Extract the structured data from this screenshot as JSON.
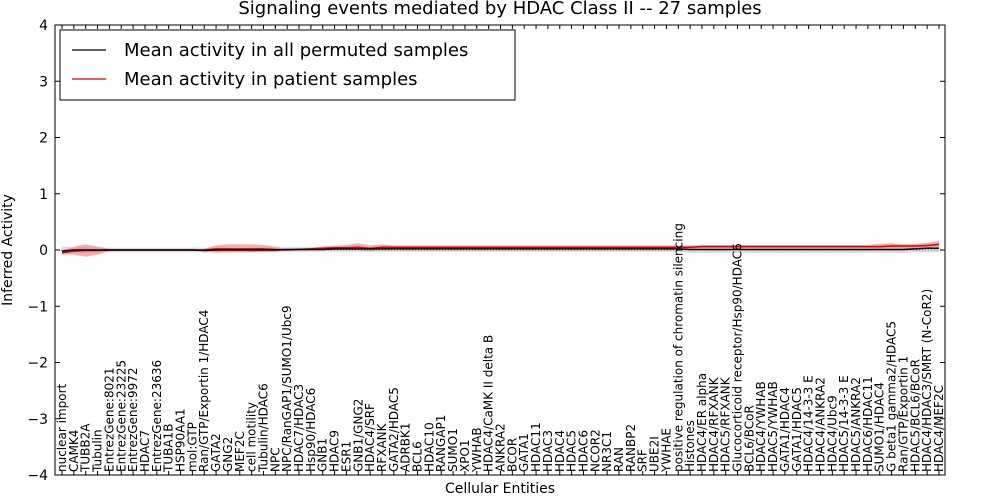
{
  "chart_data": {
    "type": "line",
    "title": "Signaling events mediated by HDAC Class II -- 27 samples",
    "xlabel": "Cellular Entities",
    "ylabel": "Inferred Activity",
    "ylim": [
      -4,
      4
    ],
    "yticks": [
      -4,
      -3,
      -2,
      -1,
      0,
      1,
      2,
      3,
      4
    ],
    "ytick_labels": [
      "−4",
      "−3",
      "−2",
      "−1",
      "0",
      "1",
      "2",
      "3",
      "4"
    ],
    "legend_position": "upper-left",
    "categories": [
      "nuclear import",
      "CAMK4",
      "TUBB2A",
      "Tubulin",
      "EntrezGene:8021",
      "EntrezGene:23225",
      "EntrezGene:9972",
      "HDAC7",
      "EntrezGene:23636",
      "TUBA1B",
      "HSP90AA1",
      "mol:GTP",
      "Ran/GTP/Exportin 1/HDAC4",
      "GATA2",
      "GNG2",
      "MEF2C",
      "cell motility",
      "Tubulin/HDAC6",
      "NPC",
      "NPC/RanGAP1/SUMO1/Ubc9",
      "HDAC7/HDAC3",
      "Hsp90/HDAC6",
      "GNB1",
      "HDAC9",
      "ESR1",
      "GNB1/GNG2",
      "HDAC4/SRF",
      "RFXANK",
      "GATA2/HDAC5",
      "ADRBK1",
      "BCL6",
      "HDAC10",
      "RANGAP1",
      "SUMO1",
      "XPO1",
      "YWHAB",
      "HDAC4/CaMK II delta B",
      "ANKRA2",
      "BCOR",
      "GATA1",
      "HDAC11",
      "HDAC3",
      "HDAC4",
      "HDAC5",
      "HDAC6",
      "NCOR2",
      "NR3C1",
      "RAN",
      "RANBP2",
      "SRF",
      "UBE2I",
      "YWHAE",
      "positive regulation of chromatin silencing",
      "Histones",
      "HDAC4/ER alpha",
      "HDAC4/RFXANK",
      "HDAC5/RFXANK",
      "Glucocorticoid receptor/Hsp90/HDAC6",
      "BCL6/BCoR",
      "HDAC4/YWHAB",
      "HDAC5/YWHAB",
      "GATA1/HDAC4",
      "GATA1/HDAC5",
      "HDAC4/14-3-3 E",
      "HDAC4/ANKRA2",
      "HDAC4/Ubc9",
      "HDAC5/14-3-3 E",
      "HDAC5/ANKRA2",
      "HDAC6/HDAC11",
      "SUMO1/HDAC4",
      "G beta1 gamma2/HDAC5",
      "Ran/GTP/Exportin 1",
      "HDAC5/BCL6/BCoR",
      "HDAC4/HDAC3/SMRT (N-CoR2)",
      "HDAC4/MEF2C"
    ],
    "series": [
      {
        "name": "Mean activity in all permuted samples",
        "color": "#000000",
        "band_color": "#b8bcc4",
        "values": [
          -0.02,
          0,
          0,
          0,
          0,
          0,
          0,
          0,
          0,
          0,
          0,
          0,
          -0.01,
          0,
          0,
          0,
          0,
          0,
          0,
          0.01,
          0.01,
          0.01,
          0.01,
          0.02,
          0.02,
          0.02,
          0.02,
          0.02,
          0.02,
          0.02,
          0.02,
          0.02,
          0.02,
          0.02,
          0.02,
          0.02,
          0.02,
          0.02,
          0.02,
          0.02,
          0.02,
          0.02,
          0.02,
          0.02,
          0.02,
          0.02,
          0.02,
          0.02,
          0.02,
          0.02,
          0.02,
          0.02,
          0.02,
          0.01,
          0.01,
          0.01,
          0.01,
          0.01,
          0.01,
          0.01,
          0.01,
          0.01,
          0.01,
          0.01,
          0.01,
          0.01,
          0.01,
          0.01,
          0.01,
          0.01,
          0.01,
          0.01,
          0.02,
          0.03,
          0.03
        ],
        "lower": [
          -0.08,
          -0.05,
          -0.05,
          -0.05,
          -0.04,
          -0.04,
          -0.04,
          -0.04,
          -0.04,
          -0.04,
          -0.04,
          -0.04,
          -0.05,
          -0.04,
          -0.04,
          -0.04,
          -0.04,
          -0.04,
          -0.04,
          -0.03,
          -0.03,
          -0.03,
          -0.03,
          -0.03,
          -0.03,
          -0.03,
          -0.03,
          -0.03,
          -0.03,
          -0.03,
          -0.03,
          -0.03,
          -0.03,
          -0.03,
          -0.03,
          -0.03,
          -0.03,
          -0.03,
          -0.03,
          -0.03,
          -0.03,
          -0.03,
          -0.03,
          -0.03,
          -0.03,
          -0.03,
          -0.03,
          -0.03,
          -0.03,
          -0.03,
          -0.03,
          -0.03,
          -0.03,
          -0.05,
          -0.05,
          -0.05,
          -0.05,
          -0.05,
          -0.05,
          -0.05,
          -0.05,
          -0.05,
          -0.05,
          -0.05,
          -0.05,
          -0.05,
          -0.05,
          -0.05,
          -0.05,
          -0.05,
          -0.05,
          -0.05,
          -0.04,
          -0.04,
          -0.04
        ],
        "upper": [
          0.06,
          0.05,
          0.05,
          0.05,
          0.04,
          0.04,
          0.04,
          0.04,
          0.04,
          0.04,
          0.04,
          0.04,
          0.04,
          0.04,
          0.04,
          0.04,
          0.04,
          0.04,
          0.04,
          0.05,
          0.05,
          0.05,
          0.05,
          0.06,
          0.06,
          0.06,
          0.06,
          0.06,
          0.06,
          0.06,
          0.06,
          0.06,
          0.06,
          0.06,
          0.06,
          0.06,
          0.06,
          0.06,
          0.06,
          0.06,
          0.06,
          0.06,
          0.06,
          0.06,
          0.06,
          0.06,
          0.06,
          0.06,
          0.06,
          0.06,
          0.06,
          0.06,
          0.06,
          0.06,
          0.06,
          0.06,
          0.06,
          0.06,
          0.06,
          0.06,
          0.06,
          0.06,
          0.06,
          0.06,
          0.06,
          0.06,
          0.06,
          0.06,
          0.06,
          0.06,
          0.06,
          0.06,
          0.07,
          0.08,
          0.08
        ]
      },
      {
        "name": "Mean activity in patient samples",
        "color": "#dd0000",
        "band_color": "#f08080",
        "values": [
          -0.05,
          -0.02,
          -0.01,
          -0.01,
          0,
          0,
          0,
          0,
          0,
          0,
          0,
          0,
          0,
          0.02,
          0.02,
          0.02,
          0.02,
          0.02,
          0.01,
          0,
          0.01,
          0.02,
          0.03,
          0.04,
          0.04,
          0.05,
          0.03,
          0.05,
          0.05,
          0.05,
          0.05,
          0.05,
          0.05,
          0.05,
          0.05,
          0.05,
          0.05,
          0.05,
          0.05,
          0.05,
          0.05,
          0.05,
          0.05,
          0.05,
          0.05,
          0.05,
          0.05,
          0.05,
          0.05,
          0.05,
          0.05,
          0.05,
          0.05,
          0.05,
          0.06,
          0.06,
          0.06,
          0.06,
          0.06,
          0.06,
          0.06,
          0.06,
          0.06,
          0.06,
          0.06,
          0.06,
          0.06,
          0.06,
          0.06,
          0.06,
          0.07,
          0.07,
          0.07,
          0.08,
          0.1
        ],
        "lower": [
          -0.08,
          -0.08,
          -0.12,
          -0.08,
          -0.02,
          -0.01,
          -0.01,
          -0.01,
          -0.01,
          -0.01,
          -0.01,
          -0.01,
          -0.02,
          -0.05,
          -0.04,
          -0.04,
          -0.04,
          -0.03,
          -0.03,
          -0.01,
          0,
          0.01,
          0.01,
          0,
          0,
          0,
          -0.02,
          0.01,
          0.02,
          0.02,
          0.02,
          0.02,
          0.02,
          0.02,
          0.02,
          0.02,
          0.02,
          0.02,
          0.02,
          0.02,
          0.02,
          0.02,
          0.02,
          0.02,
          0.02,
          0.02,
          0.02,
          0.02,
          0.02,
          0.02,
          0.02,
          0.02,
          0.02,
          0.02,
          0.03,
          0.03,
          0.03,
          0.03,
          0.03,
          0.03,
          0.03,
          0.03,
          0.03,
          0.03,
          0.03,
          0.03,
          0.03,
          0.03,
          0.03,
          0.03,
          0.03,
          0.03,
          0.03,
          0.04,
          0.06
        ],
        "upper": [
          -0.02,
          0.06,
          0.1,
          0.06,
          0.02,
          0.01,
          0.01,
          0.01,
          0.01,
          0.01,
          0.01,
          0.01,
          0.02,
          0.08,
          0.1,
          0.1,
          0.1,
          0.09,
          0.06,
          0.02,
          0.03,
          0.04,
          0.06,
          0.08,
          0.09,
          0.12,
          0.08,
          0.1,
          0.08,
          0.08,
          0.08,
          0.08,
          0.08,
          0.08,
          0.08,
          0.08,
          0.08,
          0.08,
          0.08,
          0.08,
          0.08,
          0.08,
          0.08,
          0.08,
          0.08,
          0.08,
          0.08,
          0.08,
          0.08,
          0.08,
          0.08,
          0.08,
          0.08,
          0.08,
          0.09,
          0.09,
          0.09,
          0.09,
          0.09,
          0.09,
          0.09,
          0.09,
          0.09,
          0.09,
          0.09,
          0.09,
          0.09,
          0.09,
          0.09,
          0.11,
          0.12,
          0.1,
          0.11,
          0.13,
          0.16
        ]
      }
    ]
  }
}
